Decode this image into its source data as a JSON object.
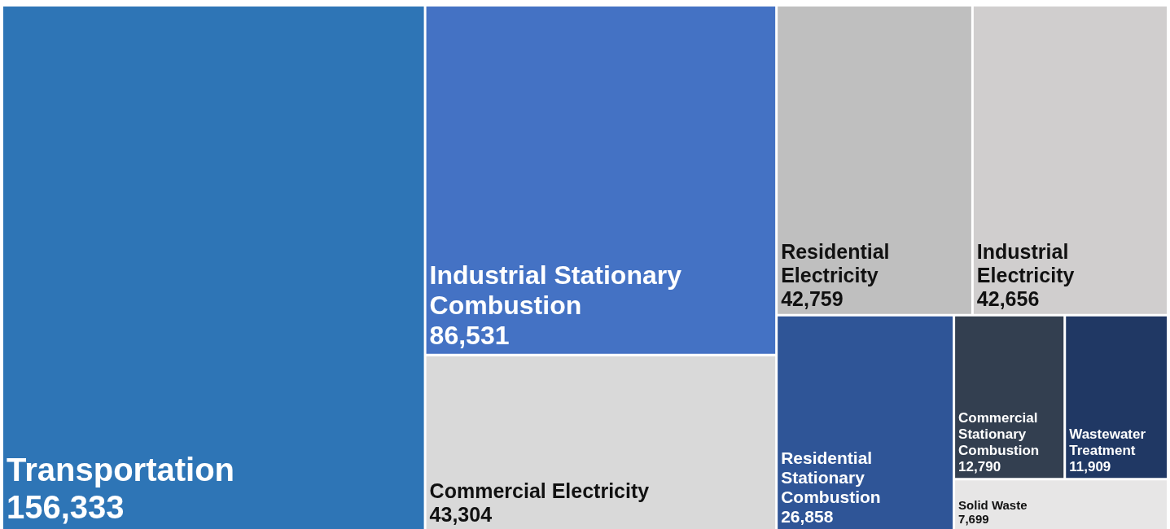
{
  "chart_data": {
    "type": "other",
    "categories": [
      "Transportation",
      "Industrial Stationary Combustion",
      "Commercial Electricity",
      "Residential Electricity",
      "Industrial Electricity",
      "Residential Stationary Combustion",
      "Commercial Stationary Combustion",
      "Wastewater Treatment",
      "Solid Waste"
    ],
    "values": [
      156333,
      86531,
      43304,
      42759,
      42656,
      26858,
      12790,
      11909,
      7699
    ],
    "colors": [
      "#2e75b6",
      "#4472c4",
      "#d9d9d9",
      "#bfbfbf",
      "#d0cece",
      "#2f5597",
      "#333f50",
      "#203864",
      "#e7e6e6"
    ],
    "value_labels": [
      "156,333",
      "86,531",
      "43,304",
      "42,759",
      "42,656",
      "26,858",
      "12,790",
      "11,909",
      "7,699"
    ]
  }
}
